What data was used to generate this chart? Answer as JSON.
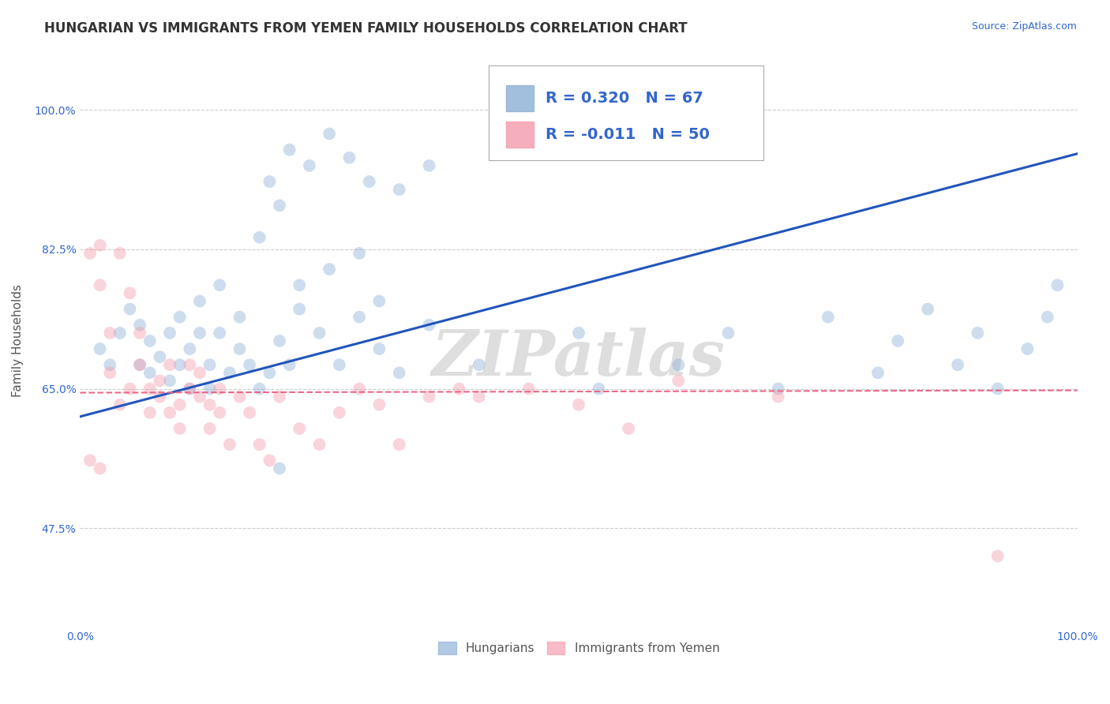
{
  "title": "HUNGARIAN VS IMMIGRANTS FROM YEMEN FAMILY HOUSEHOLDS CORRELATION CHART",
  "source": "Source: ZipAtlas.com",
  "ylabel": "Family Households",
  "xlim": [
    0.0,
    1.0
  ],
  "ylim": [
    0.35,
    1.07
  ],
  "yticks": [
    0.475,
    0.65,
    0.825,
    1.0
  ],
  "ytick_labels": [
    "47.5%",
    "65.0%",
    "82.5%",
    "100.0%"
  ],
  "xticks": [
    0.0,
    1.0
  ],
  "xtick_labels": [
    "0.0%",
    "100.0%"
  ],
  "legend_R1": "R = 0.320",
  "legend_N1": "N = 67",
  "legend_R2": "R = -0.011",
  "legend_N2": "N = 50",
  "blue_color": "#92B4D8",
  "pink_color": "#F4A0B0",
  "line_blue": "#2255BB",
  "line_pink": "#EE6688",
  "watermark": "ZIPatlas",
  "legend_label1": "Hungarians",
  "legend_label2": "Immigrants from Yemen",
  "blue_x": [
    0.02,
    0.03,
    0.04,
    0.05,
    0.06,
    0.06,
    0.07,
    0.07,
    0.08,
    0.09,
    0.09,
    0.1,
    0.1,
    0.11,
    0.11,
    0.12,
    0.12,
    0.13,
    0.13,
    0.14,
    0.14,
    0.15,
    0.16,
    0.16,
    0.17,
    0.18,
    0.19,
    0.2,
    0.21,
    0.22,
    0.24,
    0.26,
    0.28,
    0.3,
    0.32,
    0.35,
    0.18,
    0.2,
    0.22,
    0.25,
    0.28,
    0.3,
    0.4,
    0.5,
    0.52,
    0.6,
    0.65,
    0.7,
    0.75,
    0.8,
    0.82,
    0.85,
    0.88,
    0.9,
    0.92,
    0.95,
    0.97,
    0.98,
    0.19,
    0.21,
    0.23,
    0.25,
    0.27,
    0.29,
    0.32,
    0.35,
    0.2
  ],
  "blue_y": [
    0.7,
    0.68,
    0.72,
    0.75,
    0.68,
    0.73,
    0.67,
    0.71,
    0.69,
    0.66,
    0.72,
    0.68,
    0.74,
    0.65,
    0.7,
    0.72,
    0.76,
    0.65,
    0.68,
    0.72,
    0.78,
    0.67,
    0.7,
    0.74,
    0.68,
    0.65,
    0.67,
    0.71,
    0.68,
    0.75,
    0.72,
    0.68,
    0.74,
    0.7,
    0.67,
    0.73,
    0.84,
    0.88,
    0.78,
    0.8,
    0.82,
    0.76,
    0.68,
    0.72,
    0.65,
    0.68,
    0.72,
    0.65,
    0.74,
    0.67,
    0.71,
    0.75,
    0.68,
    0.72,
    0.65,
    0.7,
    0.74,
    0.78,
    0.91,
    0.95,
    0.93,
    0.97,
    0.94,
    0.91,
    0.9,
    0.93,
    0.55
  ],
  "pink_x": [
    0.01,
    0.01,
    0.02,
    0.02,
    0.03,
    0.03,
    0.04,
    0.04,
    0.05,
    0.05,
    0.06,
    0.06,
    0.07,
    0.07,
    0.08,
    0.08,
    0.09,
    0.09,
    0.1,
    0.1,
    0.11,
    0.11,
    0.12,
    0.12,
    0.13,
    0.13,
    0.14,
    0.14,
    0.15,
    0.16,
    0.17,
    0.18,
    0.19,
    0.2,
    0.22,
    0.24,
    0.26,
    0.28,
    0.3,
    0.32,
    0.35,
    0.38,
    0.4,
    0.45,
    0.5,
    0.55,
    0.6,
    0.7,
    0.92,
    0.02
  ],
  "pink_y": [
    0.82,
    0.56,
    0.78,
    0.83,
    0.72,
    0.67,
    0.82,
    0.63,
    0.77,
    0.65,
    0.72,
    0.68,
    0.65,
    0.62,
    0.66,
    0.64,
    0.68,
    0.62,
    0.63,
    0.6,
    0.65,
    0.68,
    0.64,
    0.67,
    0.63,
    0.6,
    0.65,
    0.62,
    0.58,
    0.64,
    0.62,
    0.58,
    0.56,
    0.64,
    0.6,
    0.58,
    0.62,
    0.65,
    0.63,
    0.58,
    0.64,
    0.65,
    0.64,
    0.65,
    0.63,
    0.6,
    0.66,
    0.64,
    0.44,
    0.55
  ],
  "background_color": "#FFFFFF",
  "grid_color": "#CCCCCC",
  "title_color": "#333333",
  "watermark_color": "#DEDEDE",
  "title_fontsize": 12,
  "label_fontsize": 11,
  "tick_fontsize": 10,
  "marker_size": 130,
  "marker_alpha": 0.45,
  "blue_line_y0": 0.615,
  "blue_line_y1": 0.945,
  "pink_line_y0": 0.645,
  "pink_line_y1": 0.648
}
